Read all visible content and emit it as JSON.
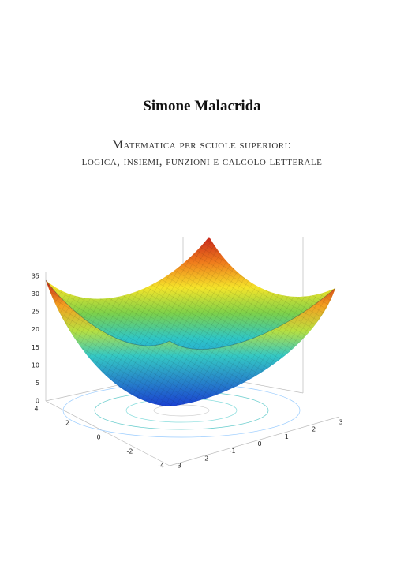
{
  "author": "Simone Malacrida",
  "title_lines": [
    "Matematica per scuole superiori:",
    "logica, insiemi, funzioni e calcolo letterale"
  ],
  "plot": {
    "zticks": [
      0,
      5,
      10,
      15,
      20,
      25,
      30,
      35
    ],
    "yticks": [
      4,
      2,
      0,
      -2,
      -4
    ],
    "xticks": [
      -3,
      -2,
      -1,
      0,
      1,
      2,
      3
    ]
  }
}
